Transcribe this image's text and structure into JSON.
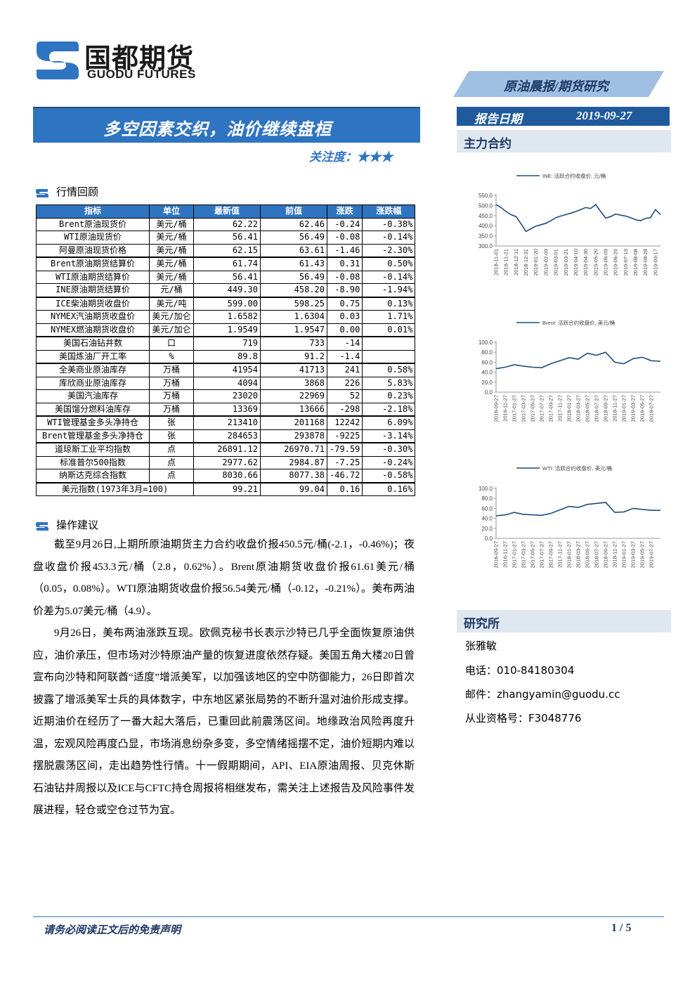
{
  "header": {
    "brand": "国都期货",
    "brand_en": "GUODU FUTURES",
    "report_type": "原油晨报/期货研究",
    "title": "多空因素交织，油价继续盘桓",
    "attention_label": "关注度：",
    "attention_stars": "★★★",
    "date_label": "报告日期",
    "date": "2019-09-27"
  },
  "sidebar": {
    "contracts_heading": "主力合约",
    "institute_heading": "研究所",
    "contacts": [
      "张雅敏",
      "电话：010-84180304",
      "邮件：zhangyamin@guodu.cc",
      "从业资格号：F3048776"
    ]
  },
  "chart_data": [
    {
      "type": "line",
      "categories": [
        "2018-11-01",
        null,
        "2018-11-21",
        null,
        "2018-12-11",
        null,
        "2018-12-31",
        null,
        "2019-01-20",
        null,
        "2019-02-09",
        null,
        "2019-03-01",
        null,
        "2019-03-21",
        null,
        "2019-04-10",
        null,
        "2019-04-30",
        null,
        "2019-05-20",
        null,
        "2019-06-09",
        null,
        "2019-06-29",
        null,
        "2019-07-19",
        null,
        "2019-08-08",
        null,
        "2019-08-28",
        null,
        "2019-09-17",
        null
      ],
      "series": [
        {
          "name": "INE: 活跃合约收盘价, 元/桶",
          "color": "#1f4e79",
          "values": [
            505,
            490,
            470,
            455,
            445,
            410,
            372,
            385,
            398,
            405,
            412,
            425,
            440,
            448,
            455,
            462,
            470,
            480,
            490,
            485,
            505,
            470,
            438,
            445,
            458,
            452,
            448,
            440,
            430,
            425,
            436,
            440,
            480,
            455
          ]
        }
      ],
      "ylim": [
        300,
        550
      ],
      "yticks": [
        {
          "value": 300,
          "label": "300.0"
        },
        {
          "value": 350,
          "label": "350.0"
        },
        {
          "value": 400,
          "label": "400.0"
        },
        {
          "value": 450,
          "label": "450.0"
        },
        {
          "value": 500,
          "label": "500.0"
        },
        {
          "value": 550,
          "label": "550.0"
        }
      ]
    },
    {
      "type": "line",
      "categories": [
        "2016-09-27",
        "2016-11-27",
        "2017-01-27",
        "2017-03-27",
        "2017-05-27",
        "2017-07-27",
        "2017-09-27",
        "2017-11-27",
        "2018-01-27",
        "2018-03-27",
        "2018-05-27",
        "2018-07-27",
        "2018-09-27",
        "2018-11-27",
        "2019-01-27",
        "2019-03-27",
        "2019-05-27",
        "2019-07-27",
        null
      ],
      "series": [
        {
          "name": "Brent: 活跃合约收盘价, 美元/桶",
          "color": "#1f4e79",
          "values": [
            47,
            50,
            55,
            52,
            50,
            49,
            57,
            63,
            69,
            66,
            78,
            74,
            80,
            60,
            57,
            67,
            70,
            63,
            62
          ]
        }
      ],
      "ylim": [
        0,
        100
      ],
      "yticks": [
        {
          "value": 0,
          "label": "0.0"
        },
        {
          "value": 20,
          "label": "20.0"
        },
        {
          "value": 40,
          "label": "40.0"
        },
        {
          "value": 60,
          "label": "60.0"
        },
        {
          "value": 80,
          "label": "80.0"
        },
        {
          "value": 100,
          "label": "100.0"
        }
      ]
    },
    {
      "type": "line",
      "categories": [
        "2016-09-27",
        "2016-11-27",
        "2017-01-27",
        "2017-03-27",
        "2017-05-27",
        "2017-07-27",
        "2017-09-27",
        "2017-11-27",
        "2018-01-27",
        "2018-03-27",
        "2018-05-27",
        "2018-07-27",
        "2018-09-27",
        "2018-11-27",
        "2019-01-27",
        "2019-03-27",
        "2019-05-27",
        "2019-07-27",
        null
      ],
      "series": [
        {
          "name": "WTI: 活跃合约收盘价, 美元/桶",
          "color": "#1f4e79",
          "values": [
            45,
            47,
            52,
            48,
            47,
            46,
            50,
            57,
            64,
            62,
            68,
            70,
            72,
            52,
            53,
            60,
            58,
            56,
            56
          ]
        }
      ],
      "ylim": [
        0,
        100
      ],
      "yticks": [
        {
          "value": 0,
          "label": "0.0"
        },
        {
          "value": 20,
          "label": "20.0"
        },
        {
          "value": 40,
          "label": "40.0"
        },
        {
          "value": 60,
          "label": "60.0"
        },
        {
          "value": 80,
          "label": "80.0"
        },
        {
          "value": 100,
          "label": "100.0"
        }
      ]
    }
  ],
  "review": {
    "heading": "行情回顾",
    "table": {
      "columns": [
        "指标",
        "单位",
        "最新值",
        "前值",
        "涨跌",
        "涨跌幅"
      ],
      "rows": [
        [
          "Brent原油现货价",
          "美元/桶",
          "62.22",
          "62.46",
          "-0.24",
          "-0.38%"
        ],
        [
          "WTI原油现货价",
          "美元/桶",
          "56.41",
          "56.49",
          "-0.08",
          "-0.14%"
        ],
        [
          "阿曼原油现货价格",
          "美元/桶",
          "62.15",
          "63.61",
          "-1.46",
          "-2.30%"
        ],
        [
          "Brent原油期货结算价",
          "美元/桶",
          "61.74",
          "61.43",
          "0.31",
          "0.50%"
        ],
        [
          "WTI原油期货结算价",
          "美元/桶",
          "56.41",
          "56.49",
          "-0.08",
          "-0.14%"
        ],
        [
          "INE原油期货结算价",
          "元/桶",
          "449.30",
          "458.20",
          "-8.90",
          "-1.94%"
        ],
        [
          "ICE柴油期货收盘价",
          "美元/吨",
          "599.00",
          "598.25",
          "0.75",
          "0.13%"
        ],
        [
          "NYMEX汽油期货收盘价",
          "美元/加仑",
          "1.6582",
          "1.6304",
          "0.03",
          "1.71%"
        ],
        [
          "NYMEX燃油期货收盘价",
          "美元/加仑",
          "1.9549",
          "1.9547",
          "0.00",
          "0.01%"
        ],
        [
          "美国石油钻井数",
          "口",
          "719",
          "733",
          "-14"
        ],
        [
          "美国炼油厂开工率",
          "%",
          "89.8",
          "91.2",
          "-1.4"
        ],
        [
          "全美商业原油库存",
          "万桶",
          "41954",
          "41713",
          "241",
          "0.58%"
        ],
        [
          "库欣商业原油库存",
          "万桶",
          "4094",
          "3868",
          "226",
          "5.83%"
        ],
        [
          "美国汽油库存",
          "万桶",
          "23020",
          "22969",
          "52",
          "0.23%"
        ],
        [
          "美国馏分燃料油库存",
          "万桶",
          "13369",
          "13666",
          "-298",
          "-2.18%"
        ],
        [
          "WTI管理基金多头净持仓",
          "张",
          "213410",
          "201168",
          "12242",
          "6.09%"
        ],
        [
          "Brent管理基金多头净持仓",
          "张",
          "284653",
          "293878",
          "-9225",
          "-3.14%"
        ],
        [
          "道琼斯工业平均指数",
          "点",
          "26891.12",
          "26970.71",
          "-79.59",
          "-0.30%"
        ],
        [
          "标准普尔500指数",
          "点",
          "2977.62",
          "2984.87",
          "-7.25",
          "-0.24%"
        ],
        [
          "纳斯达克综合指数",
          "点",
          "8030.66",
          "8077.38",
          "-46.72",
          "-0.58%"
        ],
        [
          "美元指数(1973年3月=100)",
          "99.21",
          "99.04",
          "0.16",
          "0.16%"
        ]
      ]
    }
  },
  "advice": {
    "heading": "操作建议",
    "paragraphs": [
      "截至9月26日,上期所原油期货主力合约收盘价报450.5元/桶(-2.1，-0.46%)；夜盘收盘价报453.3元/桶（2.8，0.62%）。Brent原油期货收盘价报61.61美元/桶（0.05，0.08%）。WTI原油期货收盘价报56.54美元/桶（-0.12，-0.21%）。美布两油价差为5.07美元/桶（4.9）。",
      "9月26日，美布两油涨跌互现。欧佩克秘书长表示沙特已几乎全面恢复原油供应，油价承压，但市场对沙特原油产量的恢复进度依然存疑。美国五角大楼20日曾宣布向沙特和阿联酋“适度”增派美军，以加强该地区的空中防御能力，26日即首次披露了增派美军士兵的具体数字，中东地区紧张局势的不断升温对油价形成支撑。近期油价在经历了一番大起大落后，已重回此前震荡区间。地缘政治风险再度升温，宏观风险再度凸显，市场消息纷杂多变，多空情绪摇摆不定，油价短期内难以摆脱震荡区间，走出趋势性行情。十一假期期间，API、EIA原油周报、贝克休斯石油钻井周报以及ICE与CFTC持仓周报将相继发布，需关注上述报告及风险事件发展进程，轻仓或空仓过节为宜。"
    ]
  },
  "footer": {
    "disclaimer": "请务必阅读正文后的免责声明",
    "page": "1 / 5"
  }
}
